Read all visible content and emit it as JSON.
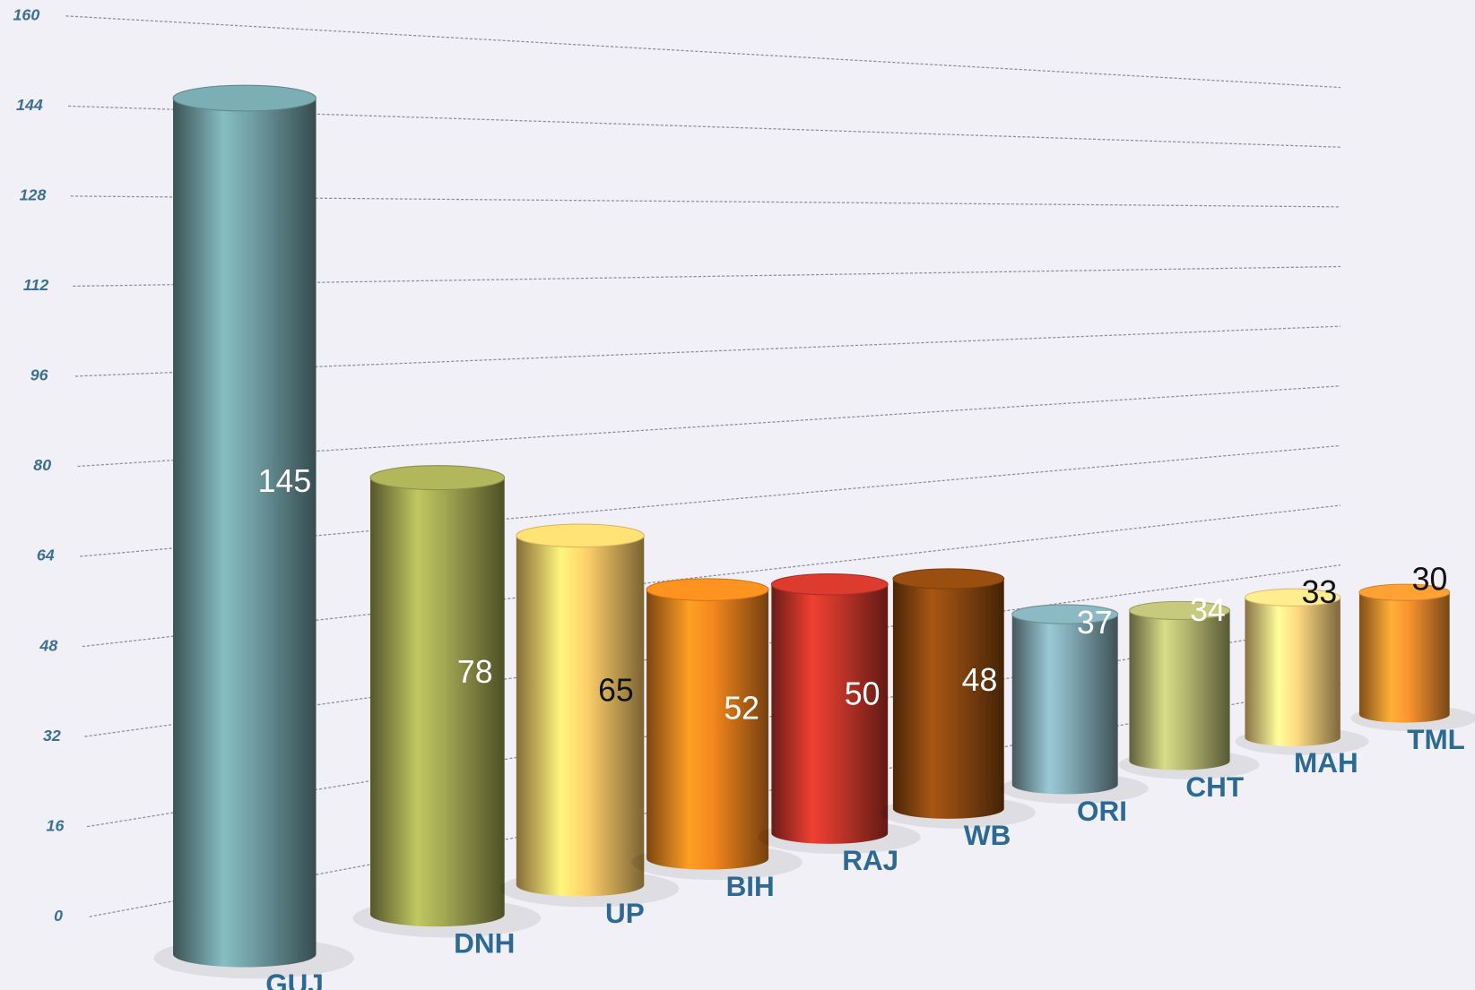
{
  "chart_data": {
    "type": "bar",
    "categories": [
      "GUJ",
      "DNH",
      "UP",
      "BIH",
      "RAJ",
      "WB",
      "ORI",
      "CHT",
      "MAH",
      "TML"
    ],
    "values": [
      145,
      78,
      65,
      52,
      50,
      48,
      37,
      34,
      33,
      30
    ],
    "colors": [
      "#6b979d",
      "#9a9f4e",
      "#f4c565",
      "#e7801c",
      "#bf3328",
      "#86450f",
      "#7ba1ab",
      "#adb06c",
      "#f6cf7c",
      "#ee8d2c"
    ],
    "label_colors": [
      "#ffffff",
      "#ffffff",
      "#111111",
      "#ffffff",
      "#ffffff",
      "#ffffff",
      "#ffffff",
      "#ffffff",
      "#111111",
      "#111111"
    ],
    "ylim": [
      0,
      160
    ],
    "yticks": [
      0,
      16,
      32,
      48,
      64,
      80,
      96,
      112,
      128,
      144,
      160
    ],
    "grid": true
  }
}
